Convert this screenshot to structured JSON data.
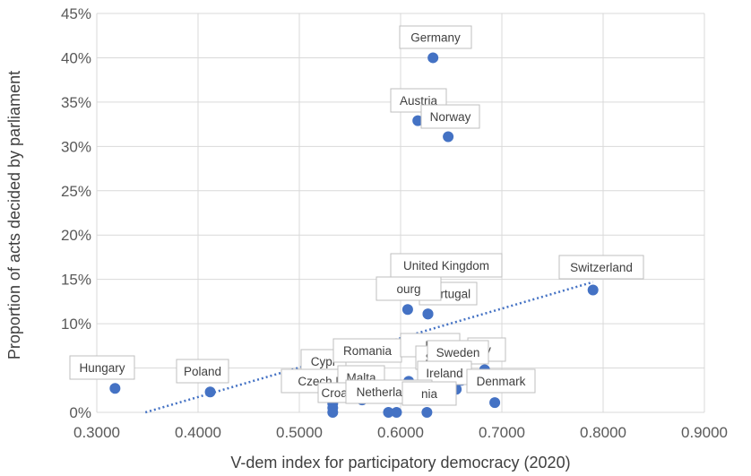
{
  "chart_data": {
    "type": "scatter",
    "xlabel": "V-dem index for participatory democracy (2020)",
    "ylabel": "Proportion of acts decided by parliament",
    "xlim": [
      0.3,
      0.9
    ],
    "ylim": [
      0,
      45
    ],
    "x_ticks": [
      "0.3000",
      "0.4000",
      "0.5000",
      "0.6000",
      "0.7000",
      "0.8000",
      "0.9000"
    ],
    "x_tick_values": [
      0.3,
      0.4,
      0.5,
      0.6,
      0.7,
      0.8,
      0.9
    ],
    "y_ticks": [
      "0%",
      "5%",
      "10%",
      "15%",
      "20%",
      "25%",
      "30%",
      "35%",
      "40%",
      "45%"
    ],
    "y_tick_values": [
      0,
      5,
      10,
      15,
      20,
      25,
      30,
      35,
      40,
      45
    ],
    "grid": true,
    "marker_color": "#4472C4",
    "trendline": {
      "style": "dotted",
      "color": "#4472C4",
      "x": [
        0.348,
        0.79
      ],
      "y": [
        0,
        14.7
      ]
    },
    "points": [
      {
        "label": "Germany",
        "x": 0.632,
        "y": 40.0
      },
      {
        "label": "Austria",
        "x": 0.617,
        "y": 32.9
      },
      {
        "label": "Norway",
        "x": 0.647,
        "y": 31.1
      },
      {
        "label": "Switzerland",
        "x": 0.79,
        "y": 13.8
      },
      {
        "label": "United Kingdom",
        "x": 0.627,
        "y": 11.1
      },
      {
        "label": "Portugal",
        "x": 0.607,
        "y": 11.6
      },
      {
        "label": "Luxembourg",
        "x": 0.627,
        "y": 11.1
      },
      {
        "label": "Hungary",
        "x": 0.318,
        "y": 2.7
      },
      {
        "label": "Poland",
        "x": 0.412,
        "y": 2.3
      },
      {
        "label": "Cyprus",
        "x": 0.533,
        "y": 1.0
      },
      {
        "label": "Romania",
        "x": 0.562,
        "y": 1.5
      },
      {
        "label": "Finland",
        "x": 0.608,
        "y": 3.5
      },
      {
        "label": "Italy",
        "x": 0.683,
        "y": 4.8
      },
      {
        "label": "Sweden",
        "x": 0.66,
        "y": 3.6
      },
      {
        "label": "Slovenia",
        "x": 0.655,
        "y": 2.6
      },
      {
        "label": "Ireland",
        "x": 0.627,
        "y": 2.4
      },
      {
        "label": "Denmark",
        "x": 0.693,
        "y": 1.1
      },
      {
        "label": "Czech Republic",
        "x": 0.533,
        "y": 0.0
      },
      {
        "label": "Malta",
        "x": 0.562,
        "y": 1.4
      },
      {
        "label": "Croatia",
        "x": 0.533,
        "y": 0.5
      },
      {
        "label": "Netherlands",
        "x": 0.588,
        "y": 0.0
      },
      {
        "label": "Estonia",
        "x": 0.596,
        "y": 0.0
      },
      {
        "label": "Lithuania",
        "x": 0.626,
        "y": 0.0
      }
    ],
    "label_text": [
      "Germany",
      "Austria",
      "Norway",
      "Switzerland",
      "United Kingdom",
      "Portugal",
      "ourg",
      "Hungary",
      "Poland",
      "Cypr",
      "Romania",
      "Fi",
      "ly",
      "S",
      "Sweden",
      "Ireland",
      "Denmark",
      "Czech Re",
      "Malta",
      "Croat",
      "Netherlands",
      "nia"
    ]
  }
}
